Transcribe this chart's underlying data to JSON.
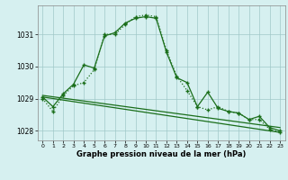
{
  "line1_x": [
    0,
    1,
    2,
    3,
    4,
    5,
    6,
    7,
    8,
    9,
    10,
    11,
    12,
    13,
    14,
    15,
    16,
    17,
    18,
    19,
    20,
    21,
    22,
    23
  ],
  "line1_y": [
    1029.0,
    1028.6,
    1029.1,
    1029.4,
    1029.5,
    1029.9,
    1031.0,
    1031.0,
    1031.3,
    1031.55,
    1031.6,
    1031.55,
    1030.5,
    1029.7,
    1029.25,
    1028.75,
    1028.65,
    1028.75,
    1028.6,
    1028.55,
    1028.35,
    1028.35,
    1028.05,
    1027.95
  ],
  "line2_x": [
    0,
    1,
    2,
    3,
    4,
    5,
    6,
    7,
    8,
    9,
    10,
    11,
    12,
    13,
    14,
    15,
    16,
    17,
    18,
    19,
    20,
    21,
    22,
    23
  ],
  "line2_y": [
    1029.05,
    1028.75,
    1029.15,
    1029.45,
    1030.05,
    1029.95,
    1030.95,
    1031.05,
    1031.35,
    1031.5,
    1031.55,
    1031.5,
    1030.45,
    1029.65,
    1029.5,
    1028.75,
    1029.2,
    1028.7,
    1028.6,
    1028.55,
    1028.35,
    1028.45,
    1028.1,
    1028.0
  ],
  "line3_x": [
    0,
    23
  ],
  "line3_y": [
    1029.1,
    1028.1
  ],
  "line4_x": [
    0,
    23
  ],
  "line4_y": [
    1029.05,
    1027.95
  ],
  "line_color": "#1a6e1a",
  "bg_color": "#d6f0f0",
  "grid_color": "#a0c8c8",
  "xlabel": "Graphe pression niveau de la mer (hPa)",
  "ylim": [
    1027.7,
    1031.9
  ],
  "xlim": [
    -0.5,
    23.5
  ],
  "yticks": [
    1028,
    1029,
    1030,
    1031
  ],
  "xticks": [
    0,
    1,
    2,
    3,
    4,
    5,
    6,
    7,
    8,
    9,
    10,
    11,
    12,
    13,
    14,
    15,
    16,
    17,
    18,
    19,
    20,
    21,
    22,
    23
  ]
}
